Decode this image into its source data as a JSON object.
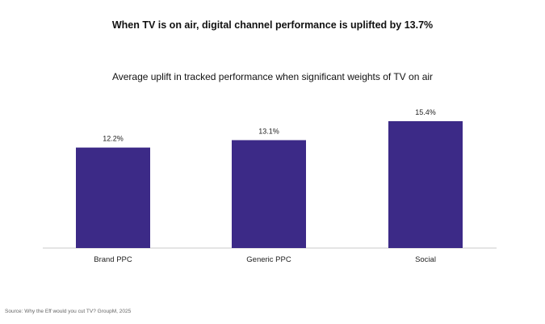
{
  "title": "When TV is on air, digital channel performance is uplifted by 13.7%",
  "source": "Source: Why the Eff would you cut TV? GroupM, 2025",
  "colors": {
    "bar": "#3c2a87",
    "axis": "#c8c8c8"
  },
  "chart_data": {
    "type": "bar",
    "title": "Average uplift in tracked performance when significant weights of TV on air",
    "categories": [
      "Brand PPC",
      "Generic PPC",
      "Social"
    ],
    "values": [
      12.2,
      13.1,
      15.4
    ],
    "value_labels": [
      "12.2%",
      "13.1%",
      "15.4%"
    ],
    "xlabel": "",
    "ylabel": "",
    "ylim": [
      0,
      15.4
    ],
    "grid": false,
    "legend": "none"
  }
}
